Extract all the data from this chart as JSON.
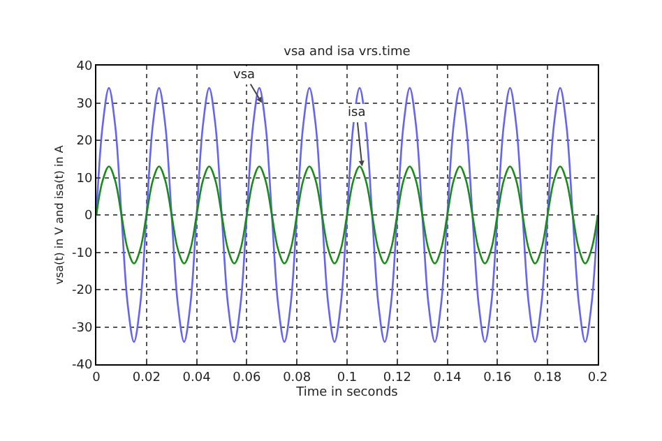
{
  "chart_data": {
    "type": "line",
    "title": "vsa and isa vrs.time",
    "xlabel": "Time in seconds",
    "ylabel": "vsa(t) in V and isa(t) in A",
    "x": [
      0,
      0.0025,
      0.005,
      0.0075,
      0.01,
      0.0125,
      0.015,
      0.0175,
      0.02,
      0.0225,
      0.025,
      0.0275,
      0.03,
      0.0325,
      0.035,
      0.0375,
      0.04,
      0.0425,
      0.045,
      0.0475,
      0.05,
      0.0525,
      0.055,
      0.0575,
      0.06,
      0.0625,
      0.065,
      0.0675,
      0.07,
      0.0725,
      0.075,
      0.0775,
      0.08,
      0.0825,
      0.085,
      0.0875,
      0.09,
      0.0925,
      0.095,
      0.0975,
      0.1,
      0.1025,
      0.105,
      0.1075,
      0.11,
      0.1125,
      0.115,
      0.1175,
      0.12,
      0.1225,
      0.125,
      0.1275,
      0.13,
      0.1325,
      0.135,
      0.1375,
      0.14,
      0.1425,
      0.145,
      0.1475,
      0.15,
      0.1525,
      0.155,
      0.1575,
      0.16,
      0.1625,
      0.165,
      0.1675,
      0.17,
      0.1725,
      0.175,
      0.1775,
      0.18,
      0.1825,
      0.185,
      0.1875,
      0.19,
      0.1925,
      0.195,
      0.1975,
      0.2
    ],
    "series": [
      {
        "color": "#6464f0",
        "values": [
          0,
          24,
          34,
          24,
          0,
          -24,
          -34,
          -24,
          0,
          24,
          34,
          24,
          0,
          -24,
          -34,
          -24,
          0,
          24,
          34,
          24,
          0,
          -24,
          -34,
          -24,
          0,
          24,
          34,
          24,
          0,
          -24,
          -34,
          -24,
          0,
          24,
          34,
          24,
          0,
          -24,
          -34,
          -24,
          0,
          24,
          34,
          24,
          0,
          -24,
          -34,
          -24,
          0,
          24,
          34,
          24,
          0,
          -24,
          -34,
          -24,
          0,
          24,
          34,
          24,
          0,
          -24,
          -34,
          -24,
          0,
          24,
          34,
          24,
          0,
          -24,
          -34,
          -24,
          0,
          24,
          34,
          24,
          0,
          -24,
          -34,
          -24,
          0
        ]
      },
      {
        "color": "#1a8a1a",
        "values": [
          0,
          9.2,
          13,
          9.2,
          0,
          -9.2,
          -13,
          -9.2,
          0,
          9.2,
          13,
          9.2,
          0,
          -9.2,
          -13,
          -9.2,
          0,
          9.2,
          13,
          9.2,
          0,
          -9.2,
          -13,
          -9.2,
          0,
          9.2,
          13,
          9.2,
          0,
          -9.2,
          -13,
          -9.2,
          0,
          9.2,
          13,
          9.2,
          0,
          -9.2,
          -13,
          -9.2,
          0,
          9.2,
          13,
          9.2,
          0,
          -9.2,
          -13,
          -9.2,
          0,
          9.2,
          13,
          9.2,
          0,
          -9.2,
          -13,
          -9.2,
          0,
          9.2,
          13,
          9.2,
          0,
          -9.2,
          -13,
          -9.2,
          0,
          9.2,
          13,
          9.2,
          0,
          -9.2,
          -13,
          -9.2,
          0,
          9.2,
          13,
          9.2,
          0,
          -9.2,
          -13,
          -9.2,
          0
        ]
      }
    ],
    "annotations": [
      {
        "text": "vsa",
        "x": 0.066,
        "y": 30
      },
      {
        "text": "isa",
        "x": 0.106,
        "y": 13
      }
    ],
    "xlim": [
      0,
      0.2
    ],
    "xticks": [
      0,
      0.02,
      0.04,
      0.06,
      0.08,
      0.1,
      0.12,
      0.14,
      0.16,
      0.18,
      0.2
    ],
    "ylim": [
      -40,
      40
    ],
    "yticks": [
      -40,
      -30,
      -20,
      -10,
      0,
      10,
      20,
      30,
      40
    ],
    "grid": true,
    "line_style": "solid",
    "marker": "none"
  }
}
